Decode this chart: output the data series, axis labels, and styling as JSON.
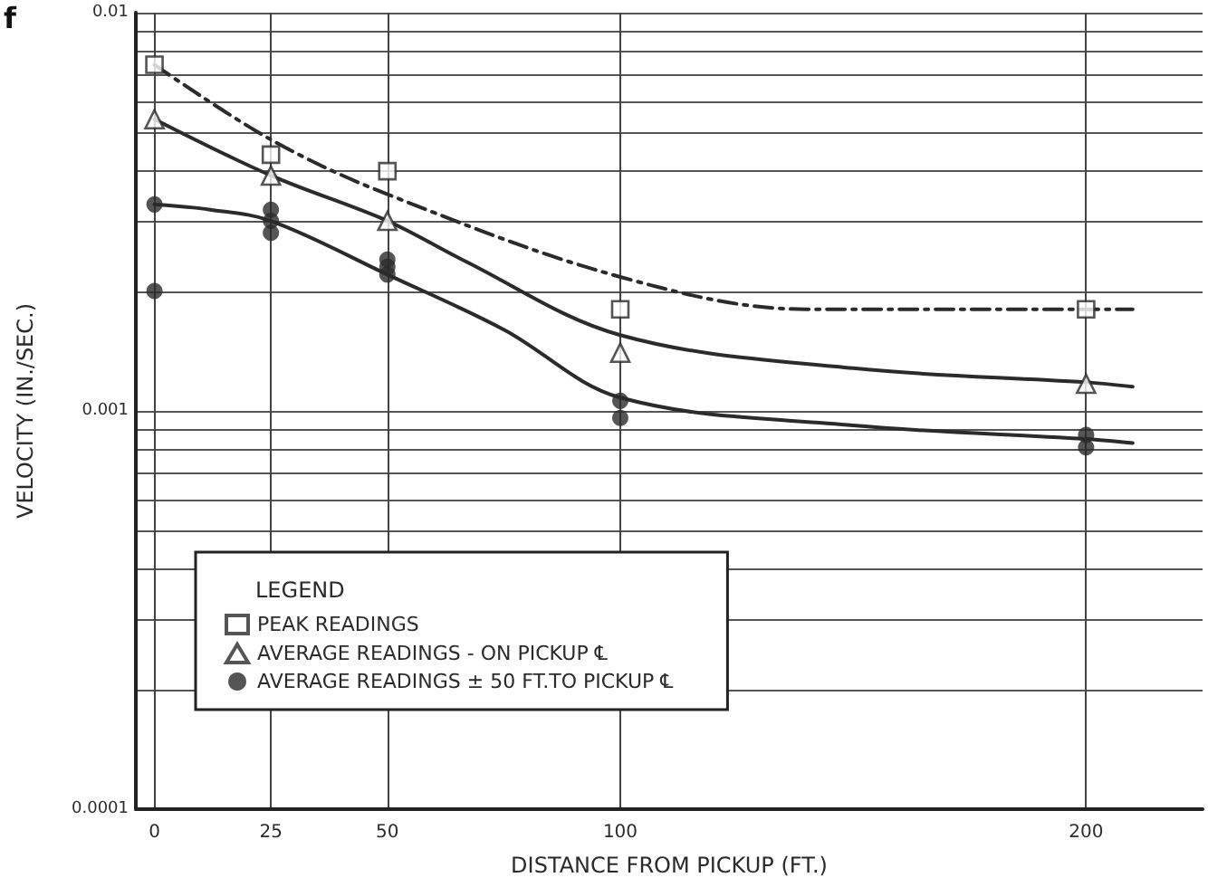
{
  "chart_data": {
    "type": "scatter",
    "xlabel": "DISTANCE FROM PICKUP (FT.)",
    "ylabel": "VELOCITY (IN./SEC.)",
    "legend_title": "LEGEND",
    "annotations": [
      "f"
    ],
    "xlim": [
      -4,
      225
    ],
    "xticks": [
      0,
      25,
      50,
      100,
      200
    ],
    "ylim": [
      0.0001,
      0.01
    ],
    "yticks": [
      {
        "value": 0.0001,
        "label": "0.0001"
      },
      {
        "value": 0.0002,
        "label": null
      },
      {
        "value": 0.0003,
        "label": null
      },
      {
        "value": 0.0004,
        "label": null
      },
      {
        "value": 0.0005,
        "label": null
      },
      {
        "value": 0.0006,
        "label": null
      },
      {
        "value": 0.0007,
        "label": null
      },
      {
        "value": 0.0008,
        "label": null
      },
      {
        "value": 0.0009,
        "label": null
      },
      {
        "value": 0.001,
        "label": "0.001"
      },
      {
        "value": 0.002,
        "label": null
      },
      {
        "value": 0.003,
        "label": null
      },
      {
        "value": 0.004,
        "label": null
      },
      {
        "value": 0.005,
        "label": null
      },
      {
        "value": 0.006,
        "label": null
      },
      {
        "value": 0.007,
        "label": null
      },
      {
        "value": 0.008,
        "label": null
      },
      {
        "value": 0.009,
        "label": null
      },
      {
        "value": 0.01,
        "label": "0.01"
      }
    ],
    "log": "y",
    "grid": true,
    "legend": "bottom left",
    "series": [
      {
        "name": "PEAK READINGS",
        "marker": "square",
        "color": "#2b2b2b",
        "x": [
          0,
          25,
          50,
          100,
          200
        ],
        "values": [
          0.0074,
          0.0044,
          0.004,
          0.0018,
          0.0018
        ]
      },
      {
        "name": "AVERAGE READINGS - ON PICKUP ℄",
        "marker": "triangle",
        "color": "#2b2b2b",
        "x": [
          0,
          25,
          50,
          100,
          200
        ],
        "values": [
          0.0054,
          0.0039,
          0.003,
          0.0014,
          0.00117
        ]
      },
      {
        "name": "AVERAGE READINGS ± 50 FT.TO PICKUP ℄",
        "marker": "circle",
        "color": "#2b2b2b",
        "x": [
          0,
          0,
          25,
          25,
          25,
          50,
          50,
          50,
          100,
          100,
          200,
          200
        ],
        "values": [
          0.0033,
          0.002,
          0.0032,
          0.003,
          0.0028,
          0.0024,
          0.0023,
          0.0022,
          0.00106,
          0.00096,
          0.00087,
          0.00081
        ]
      },
      {
        "type": "line",
        "marker": "none",
        "line_style": "dashed",
        "color": "#2b2b2b",
        "x": [
          0,
          25,
          50,
          100,
          140,
          200,
          210
        ],
        "values": [
          0.0074,
          0.0048,
          0.0035,
          0.00217,
          0.0018,
          0.0018,
          0.0018
        ]
      },
      {
        "type": "line",
        "marker": "none",
        "line_style": "solid",
        "color": "#2b2b2b",
        "x": [
          0,
          25,
          50,
          66,
          100,
          150,
          200,
          210
        ],
        "values": [
          0.0054,
          0.0039,
          0.003,
          0.0024,
          0.00155,
          0.00128,
          0.00118,
          0.00115
        ]
      },
      {
        "type": "line",
        "marker": "none",
        "line_style": "solid",
        "color": "#2b2b2b",
        "x": [
          0,
          12,
          25,
          50,
          75,
          100,
          150,
          200,
          210
        ],
        "values": [
          0.0033,
          0.0032,
          0.003,
          0.0022,
          0.0016,
          0.00108,
          0.00092,
          0.00085,
          0.00083
        ]
      }
    ]
  }
}
